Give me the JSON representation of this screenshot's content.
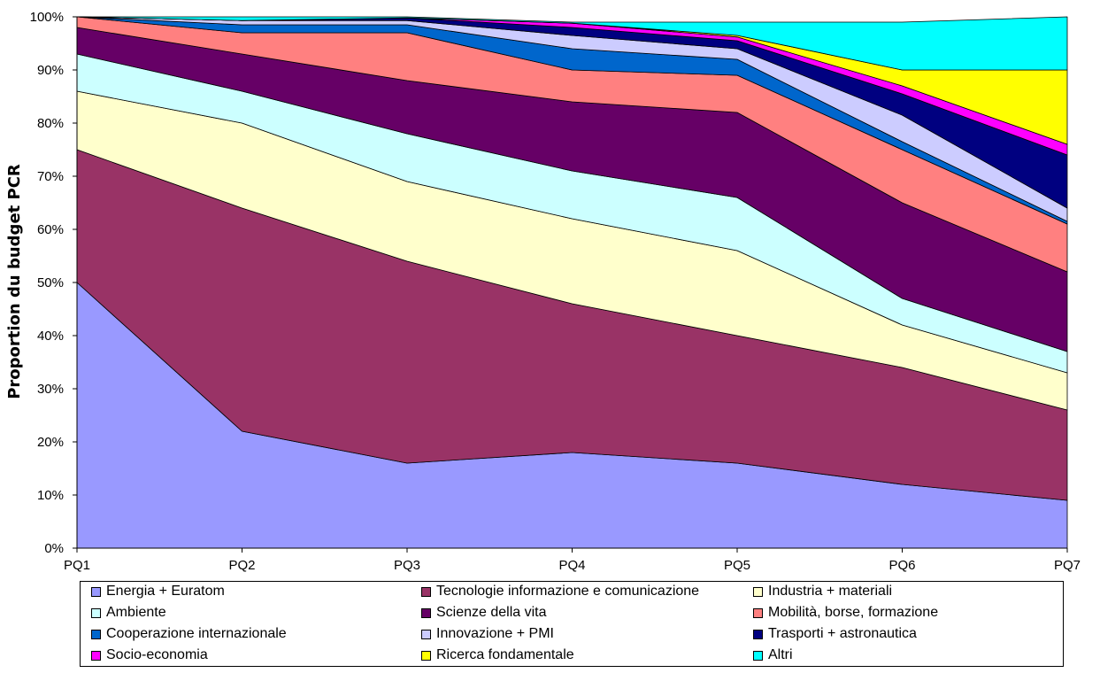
{
  "chart_data": {
    "type": "area",
    "stacked": true,
    "ylabel": "Proportion du budget PCR",
    "xlabel": "",
    "title": "",
    "ylim": [
      0,
      100
    ],
    "yticks": [
      "0%",
      "10%",
      "20%",
      "30%",
      "40%",
      "50%",
      "60%",
      "70%",
      "80%",
      "90%",
      "100%"
    ],
    "categories": [
      "PQ1",
      "PQ2",
      "PQ3",
      "PQ4",
      "PQ5",
      "PQ6",
      "PQ7"
    ],
    "legend_position": "bottom",
    "series": [
      {
        "name": "Energia + Euratom",
        "color": "#9999FF",
        "values": [
          50,
          22,
          16,
          18,
          16,
          12,
          9
        ]
      },
      {
        "name": "Tecnologie informazione e comunicazione",
        "color": "#993366",
        "values": [
          25,
          42,
          38,
          28,
          24,
          22,
          17
        ]
      },
      {
        "name": "Industria + materiali",
        "color": "#FFFFCC",
        "values": [
          11,
          16,
          15,
          16,
          16,
          8,
          7
        ]
      },
      {
        "name": "Ambiente",
        "color": "#CCFFFF",
        "values": [
          7,
          6,
          9,
          9,
          10,
          5,
          4
        ]
      },
      {
        "name": "Scienze della vita",
        "color": "#660066",
        "values": [
          5,
          7,
          10,
          13,
          16,
          18,
          15
        ]
      },
      {
        "name": "Mobilità, borse, formazione",
        "color": "#FF8080",
        "values": [
          2,
          4,
          9,
          6,
          7,
          10,
          9
        ]
      },
      {
        "name": "Cooperazione internazionale",
        "color": "#0066CC",
        "values": [
          0,
          1.5,
          1.5,
          4,
          3,
          1.5,
          0.5
        ]
      },
      {
        "name": "Innovazione + PMI",
        "color": "#CCCCFF",
        "values": [
          0,
          0.8,
          0.8,
          2.5,
          2,
          5,
          2.5
        ]
      },
      {
        "name": "Trasporti + astronautica",
        "color": "#000080",
        "values": [
          0,
          0,
          0.5,
          1.5,
          1.5,
          4,
          10
        ]
      },
      {
        "name": "Socio-economia",
        "color": "#FF00FF",
        "values": [
          0,
          0,
          0,
          0.8,
          0.7,
          1.5,
          2
        ]
      },
      {
        "name": "Ricerca fondamentale",
        "color": "#FFFF00",
        "values": [
          0,
          0,
          0,
          0,
          0.3,
          3,
          14
        ]
      },
      {
        "name": "Altri",
        "color": "#00FFFF",
        "values": [
          0,
          0.7,
          0.2,
          0.2,
          2.5,
          9,
          10
        ]
      }
    ]
  }
}
